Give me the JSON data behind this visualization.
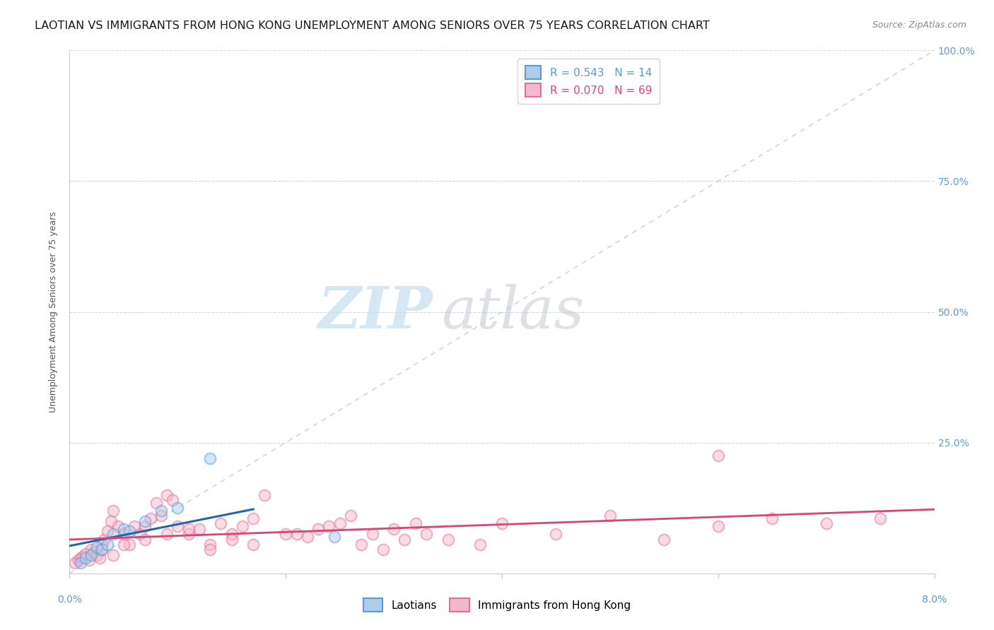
{
  "title": "LAOTIAN VS IMMIGRANTS FROM HONG KONG UNEMPLOYMENT AMONG SENIORS OVER 75 YEARS CORRELATION CHART",
  "source": "Source: ZipAtlas.com",
  "ylabel": "Unemployment Among Seniors over 75 years",
  "watermark_zip": "ZIP",
  "watermark_atlas": "atlas",
  "R_laotian": "0.543",
  "N_laotian": "14",
  "R_hk": "0.070",
  "N_hk": "69",
  "xlim": [
    0.0,
    8.0
  ],
  "ylim": [
    0.0,
    100.0
  ],
  "yticks": [
    0,
    25,
    50,
    75,
    100
  ],
  "ytick_labels_right": [
    "",
    "25.0%",
    "50.0%",
    "75.0%",
    "100.0%"
  ],
  "xtick_left_label": "0.0%",
  "xtick_right_label": "8.0%",
  "laotian_color": "#aecde8",
  "laotian_edge": "#5b9bd5",
  "hk_color": "#f4b8cc",
  "hk_edge": "#e07098",
  "blue_line_color": "#2166ac",
  "pink_line_color": "#d6447a",
  "ref_line_color": "#b8c8d8",
  "title_fontsize": 11.5,
  "source_fontsize": 9,
  "ylabel_fontsize": 9,
  "tick_fontsize": 10,
  "watermark_fontsize": 60,
  "legend_fontsize": 11,
  "scatter_size": 130,
  "scatter_alpha": 0.5,
  "scatter_lw": 1.5,
  "laotian_x": [
    0.1,
    0.15,
    0.2,
    0.25,
    0.3,
    0.35,
    0.4,
    0.5,
    0.55,
    0.7,
    0.85,
    1.0,
    1.3,
    2.45
  ],
  "laotian_y": [
    2.0,
    3.0,
    3.5,
    5.0,
    4.5,
    5.5,
    7.5,
    8.5,
    8.0,
    10.0,
    12.0,
    12.5,
    22.0,
    7.0
  ],
  "hk_x": [
    0.05,
    0.08,
    0.1,
    0.12,
    0.15,
    0.18,
    0.2,
    0.22,
    0.25,
    0.28,
    0.3,
    0.32,
    0.35,
    0.38,
    0.4,
    0.45,
    0.5,
    0.55,
    0.6,
    0.65,
    0.7,
    0.75,
    0.8,
    0.85,
    0.9,
    0.95,
    1.0,
    1.1,
    1.2,
    1.3,
    1.4,
    1.5,
    1.6,
    1.7,
    1.8,
    2.0,
    2.2,
    2.4,
    2.6,
    2.8,
    3.0,
    3.2,
    3.5,
    3.8,
    4.0,
    4.5,
    5.0,
    5.5,
    6.0,
    6.5,
    7.0,
    7.5,
    0.3,
    0.5,
    0.7,
    0.9,
    1.1,
    1.3,
    1.5,
    1.7,
    2.1,
    2.3,
    2.5,
    2.7,
    2.9,
    3.1,
    3.3,
    0.4,
    6.0
  ],
  "hk_y": [
    2.0,
    2.5,
    3.0,
    3.2,
    3.8,
    2.5,
    4.5,
    4.0,
    3.5,
    3.0,
    5.5,
    6.5,
    8.0,
    10.0,
    12.0,
    9.0,
    7.5,
    5.5,
    9.0,
    7.5,
    9.0,
    10.5,
    13.5,
    11.0,
    15.0,
    14.0,
    9.0,
    7.5,
    8.5,
    5.5,
    9.5,
    7.5,
    9.0,
    10.5,
    15.0,
    7.5,
    7.0,
    9.0,
    11.0,
    7.5,
    8.5,
    9.5,
    6.5,
    5.5,
    9.5,
    7.5,
    11.0,
    6.5,
    9.0,
    10.5,
    9.5,
    10.5,
    4.5,
    5.5,
    6.5,
    7.5,
    8.5,
    4.5,
    6.5,
    5.5,
    7.5,
    8.5,
    9.5,
    5.5,
    4.5,
    6.5,
    7.5,
    3.5,
    22.5
  ]
}
